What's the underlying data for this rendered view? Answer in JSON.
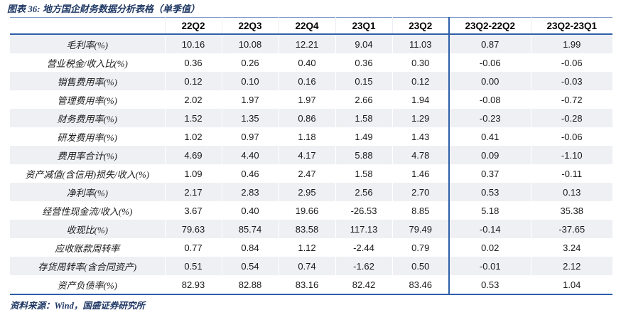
{
  "source": "资料来源：Wind，国盛证券研究所",
  "colors": {
    "title_navy": "#1f3864",
    "line_blue": "#2e5fa8",
    "top_rule_blue": "#7f9bc8",
    "alt_row_gray": "#eef0f4",
    "header_text": "#000000",
    "cell_text": "#1a1a1a"
  },
  "chart_data": {
    "type": "table",
    "title": "图表 36: 地方国企财务数据分析表格（单季值）",
    "columns": [
      "",
      "22Q2",
      "22Q3",
      "22Q4",
      "23Q1",
      "23Q2",
      "23Q2-22Q2",
      "23Q2-23Q1"
    ],
    "rows": [
      {
        "label": "毛利率(%)",
        "values": [
          "10.16",
          "10.08",
          "12.21",
          "9.04",
          "11.03",
          "0.87",
          "1.99"
        ]
      },
      {
        "label": "营业税金/收入比(%)",
        "values": [
          "0.36",
          "0.26",
          "0.40",
          "0.36",
          "0.30",
          "-0.06",
          "-0.06"
        ]
      },
      {
        "label": "销售费用率(%)",
        "values": [
          "0.12",
          "0.10",
          "0.16",
          "0.15",
          "0.12",
          "0.00",
          "-0.03"
        ]
      },
      {
        "label": "管理费用率(%)",
        "values": [
          "2.02",
          "1.97",
          "1.97",
          "2.66",
          "1.94",
          "-0.08",
          "-0.72"
        ]
      },
      {
        "label": "财务费用率(%)",
        "values": [
          "1.52",
          "1.35",
          "0.86",
          "1.58",
          "1.29",
          "-0.23",
          "-0.28"
        ]
      },
      {
        "label": "研发费用率(%)",
        "values": [
          "1.02",
          "0.97",
          "1.18",
          "1.49",
          "1.43",
          "0.41",
          "-0.06"
        ]
      },
      {
        "label": "费用率合计(%)",
        "values": [
          "4.69",
          "4.40",
          "4.17",
          "5.88",
          "4.78",
          "0.09",
          "-1.10"
        ]
      },
      {
        "label": "资产减值(含信用)损失/收入(%)",
        "values": [
          "1.09",
          "0.46",
          "2.47",
          "1.58",
          "1.46",
          "0.37",
          "-0.11"
        ]
      },
      {
        "label": "净利率(%)",
        "values": [
          "2.17",
          "2.83",
          "2.95",
          "2.56",
          "2.70",
          "0.53",
          "0.13"
        ]
      },
      {
        "label": "经营性现金流/收入(%)",
        "values": [
          "3.67",
          "0.40",
          "19.66",
          "-26.53",
          "8.85",
          "5.18",
          "35.38"
        ]
      },
      {
        "label": "收现比(%)",
        "values": [
          "79.63",
          "85.74",
          "83.58",
          "117.13",
          "79.49",
          "-0.14",
          "-37.65"
        ]
      },
      {
        "label": "应收账款周转率",
        "values": [
          "0.77",
          "0.84",
          "1.12",
          "-2.44",
          "0.79",
          "0.02",
          "3.24"
        ]
      },
      {
        "label": "存货周转率(含合同资产)",
        "values": [
          "0.51",
          "0.54",
          "0.74",
          "-1.62",
          "0.50",
          "-0.01",
          "2.12"
        ]
      },
      {
        "label": "资产负债率(%)",
        "values": [
          "82.93",
          "82.88",
          "83.16",
          "82.42",
          "83.46",
          "0.53",
          "1.04"
        ]
      }
    ]
  }
}
